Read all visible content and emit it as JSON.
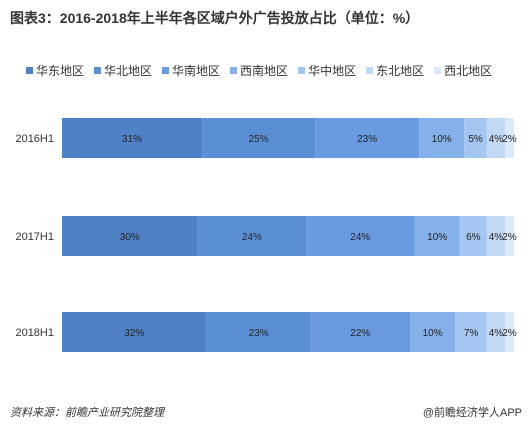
{
  "title": "图表3：2016-2018年上半年各区域户外广告投放占比（单位：%）",
  "source": "资料来源：前瞻产业研究院整理",
  "brand": "@前瞻经济学人APP",
  "chart_data": {
    "type": "bar",
    "orientation": "horizontal",
    "stacked": true,
    "percent": true,
    "legend_position": "top",
    "grid": false,
    "categories": [
      "2016H1",
      "2017H1",
      "2018H1"
    ],
    "series": [
      {
        "name": "华东地区",
        "color": "#4f81c7",
        "values": [
          31,
          30,
          32
        ],
        "labels": [
          "31%",
          "30%",
          "32%"
        ]
      },
      {
        "name": "华北地区",
        "color": "#5b8fd4",
        "values": [
          25,
          24,
          23
        ],
        "labels": [
          "25%",
          "24%",
          "23%"
        ]
      },
      {
        "name": "华南地区",
        "color": "#6a9be0",
        "values": [
          23,
          24,
          22
        ],
        "labels": [
          "23%",
          "24%",
          "22%"
        ]
      },
      {
        "name": "西南地区",
        "color": "#86b0ea",
        "values": [
          10,
          10,
          10
        ],
        "labels": [
          "10%",
          "10%",
          "10%"
        ]
      },
      {
        "name": "华中地区",
        "color": "#a5c6f1",
        "values": [
          5,
          6,
          7
        ],
        "labels": [
          "5%",
          "6%",
          "7%"
        ]
      },
      {
        "name": "东北地区",
        "color": "#c2d9f6",
        "values": [
          4,
          4,
          4
        ],
        "labels": [
          "4%",
          "4%",
          "4%"
        ]
      },
      {
        "name": "西北地区",
        "color": "#dbe9fa",
        "values": [
          2,
          2,
          2
        ],
        "labels": [
          "2%",
          "2%",
          "2%"
        ]
      }
    ]
  }
}
